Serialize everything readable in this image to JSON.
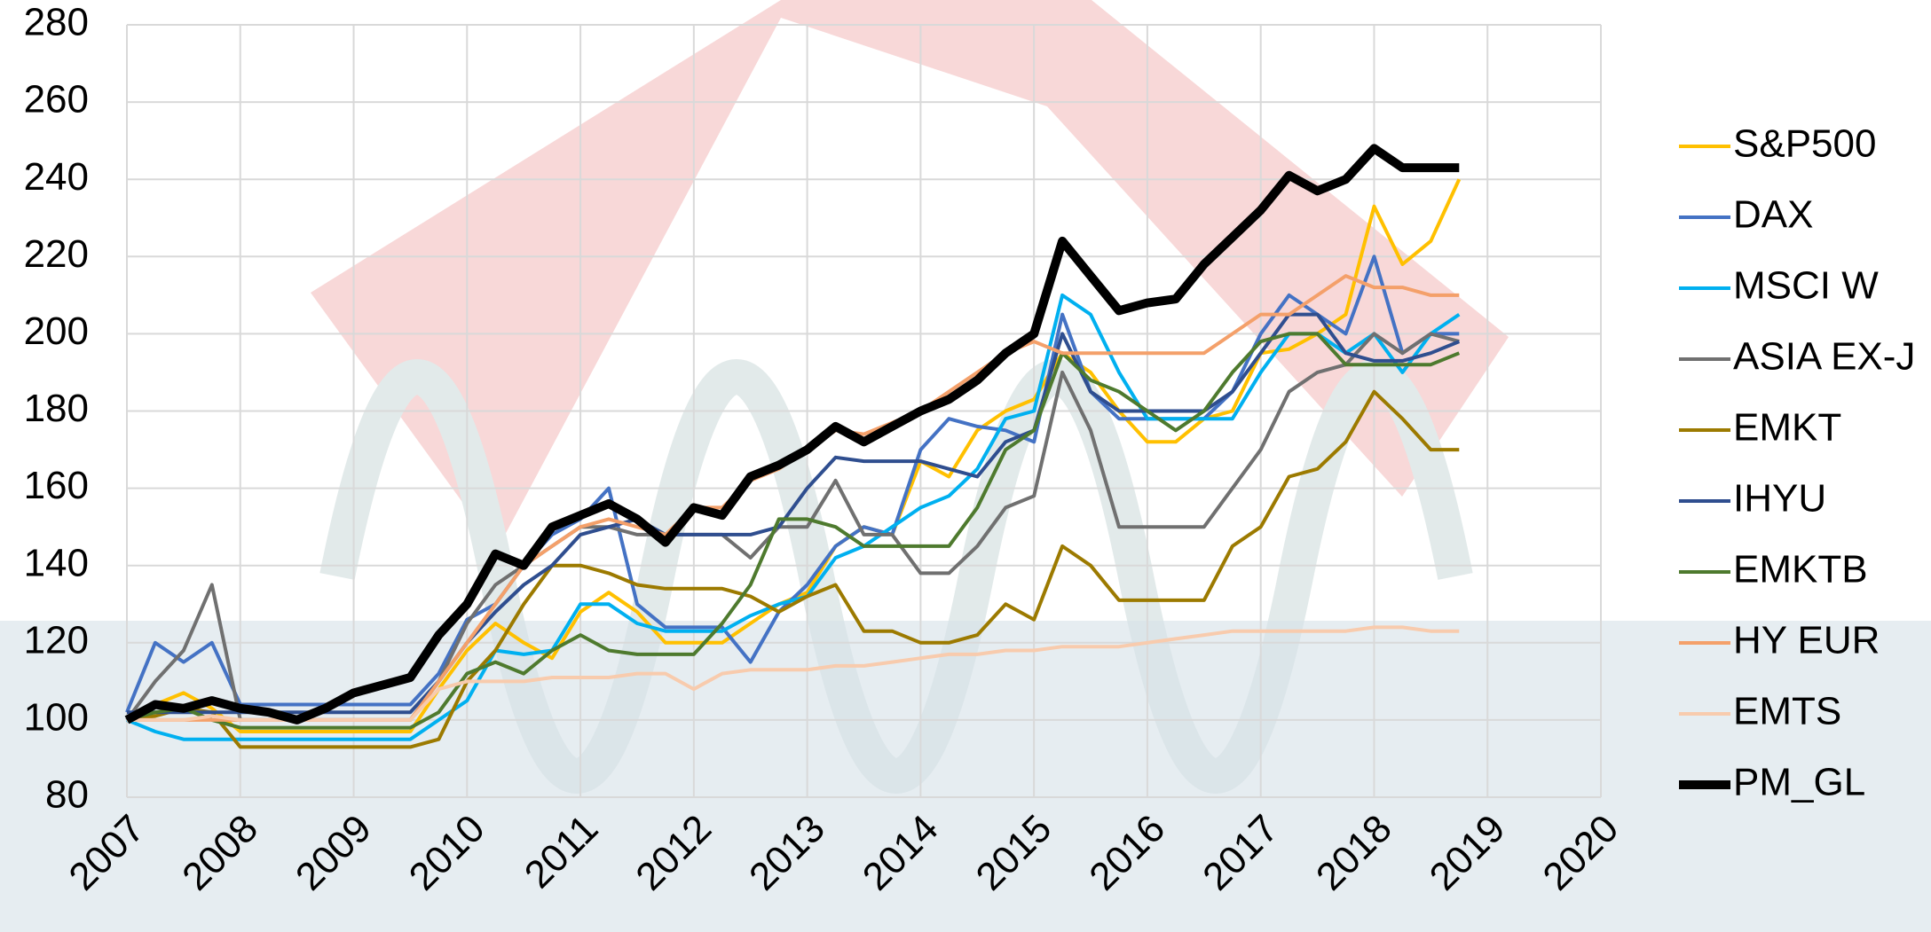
{
  "chart_data": {
    "type": "line",
    "x": [
      2007,
      2007.25,
      2007.5,
      2007.75,
      2008,
      2008.25,
      2008.5,
      2008.75,
      2009,
      2009.25,
      2009.5,
      2009.75,
      2010,
      2010.25,
      2010.5,
      2010.75,
      2011,
      2011.25,
      2011.5,
      2011.75,
      2012,
      2012.25,
      2012.5,
      2012.75,
      2013,
      2013.25,
      2013.5,
      2013.75,
      2014,
      2014.25,
      2014.5,
      2014.75,
      2015,
      2015.25,
      2015.5,
      2015.75,
      2016,
      2016.25,
      2016.5,
      2016.75,
      2017,
      2017.25,
      2017.5,
      2017.75,
      2018,
      2018.25,
      2018.5,
      2018.75
    ],
    "series": [
      {
        "name": "S&P500",
        "color": "#FFC000",
        "values": [
          100,
          104,
          107,
          103,
          97,
          97,
          97,
          97,
          97,
          97,
          97,
          108,
          118,
          125,
          120,
          116,
          128,
          133,
          128,
          120,
          120,
          120,
          125,
          130,
          133,
          145,
          150,
          148,
          167,
          163,
          175,
          180,
          183,
          195,
          190,
          180,
          172,
          172,
          178,
          180,
          195,
          196,
          200,
          205,
          233,
          218,
          224,
          240
        ]
      },
      {
        "name": "DAX",
        "color": "#4472C4",
        "values": [
          102,
          120,
          115,
          120,
          104,
          104,
          104,
          104,
          104,
          104,
          104,
          112,
          126,
          130,
          140,
          148,
          152,
          160,
          130,
          124,
          124,
          124,
          115,
          128,
          135,
          145,
          150,
          148,
          170,
          178,
          176,
          175,
          172,
          205,
          185,
          178,
          178,
          178,
          178,
          185,
          200,
          210,
          205,
          200,
          220,
          195,
          200,
          200
        ]
      },
      {
        "name": "MSCI W",
        "color": "#00B0F0",
        "values": [
          100,
          97,
          95,
          95,
          95,
          95,
          95,
          95,
          95,
          95,
          95,
          100,
          105,
          118,
          117,
          118,
          130,
          130,
          125,
          123,
          123,
          123,
          127,
          130,
          132,
          142,
          145,
          150,
          155,
          158,
          165,
          178,
          180,
          210,
          205,
          190,
          178,
          178,
          178,
          178,
          190,
          200,
          200,
          195,
          200,
          190,
          200,
          205
        ]
      },
      {
        "name": "ASIA EX-J",
        "color": "#707070",
        "values": [
          100,
          110,
          118,
          135,
          100,
          100,
          100,
          100,
          100,
          100,
          100,
          110,
          125,
          135,
          140,
          145,
          150,
          150,
          148,
          148,
          148,
          148,
          142,
          150,
          150,
          162,
          148,
          148,
          138,
          138,
          145,
          155,
          158,
          190,
          175,
          150,
          150,
          150,
          150,
          160,
          170,
          185,
          190,
          192,
          200,
          195,
          200,
          198
        ]
      },
      {
        "name": "EMKT",
        "color": "#9C7A00",
        "values": [
          100,
          101,
          103,
          102,
          93,
          93,
          93,
          93,
          93,
          93,
          93,
          95,
          110,
          118,
          130,
          140,
          140,
          138,
          135,
          134,
          134,
          134,
          132,
          128,
          132,
          135,
          123,
          123,
          120,
          120,
          122,
          130,
          126,
          145,
          140,
          131,
          131,
          131,
          131,
          145,
          150,
          163,
          165,
          172,
          185,
          178,
          170,
          170
        ]
      },
      {
        "name": "IHYU",
        "color": "#2F4E8F",
        "values": [
          102,
          102,
          102,
          102,
          102,
          102,
          102,
          102,
          102,
          102,
          102,
          110,
          120,
          128,
          135,
          140,
          148,
          150,
          152,
          148,
          148,
          148,
          148,
          150,
          160,
          168,
          167,
          167,
          167,
          165,
          163,
          172,
          175,
          200,
          185,
          180,
          180,
          180,
          180,
          185,
          195,
          205,
          205,
          195,
          193,
          193,
          195,
          198
        ]
      },
      {
        "name": "EMKTB",
        "color": "#4E7A2E",
        "values": [
          100,
          102,
          103,
          100,
          98,
          98,
          98,
          98,
          98,
          98,
          98,
          102,
          112,
          115,
          112,
          118,
          122,
          118,
          117,
          117,
          117,
          125,
          135,
          152,
          152,
          150,
          145,
          145,
          145,
          145,
          155,
          170,
          175,
          195,
          188,
          185,
          180,
          175,
          180,
          190,
          198,
          200,
          200,
          192,
          192,
          192,
          192,
          195
        ]
      },
      {
        "name": "HY EUR",
        "color": "#F4A06A",
        "values": [
          100,
          100,
          100,
          100,
          100,
          100,
          100,
          100,
          100,
          100,
          100,
          110,
          120,
          130,
          140,
          145,
          150,
          152,
          150,
          148,
          155,
          155,
          162,
          165,
          170,
          175,
          174,
          177,
          180,
          185,
          190,
          195,
          198,
          195,
          195,
          195,
          195,
          195,
          195,
          200,
          205,
          205,
          210,
          215,
          212,
          212,
          210,
          210
        ]
      },
      {
        "name": "EMTS",
        "color": "#F8CBAD",
        "values": [
          100,
          100,
          100,
          101,
          100,
          100,
          100,
          100,
          100,
          100,
          100,
          108,
          110,
          110,
          110,
          111,
          111,
          111,
          112,
          112,
          108,
          112,
          113,
          113,
          113,
          114,
          114,
          115,
          116,
          117,
          117,
          118,
          118,
          119,
          119,
          119,
          120,
          121,
          122,
          123,
          123,
          123,
          123,
          123,
          124,
          124,
          123,
          123
        ]
      },
      {
        "name": "PM_GL",
        "color": "#000000",
        "values": [
          100,
          104,
          103,
          105,
          103,
          102,
          100,
          103,
          107,
          109,
          111,
          122,
          130,
          143,
          140,
          150,
          153,
          156,
          152,
          146,
          155,
          153,
          163,
          166,
          170,
          176,
          172,
          176,
          180,
          183,
          188,
          195,
          200,
          224,
          215,
          206,
          208,
          209,
          218,
          225,
          232,
          241,
          237,
          240,
          248,
          243,
          243,
          243
        ]
      }
    ],
    "xlim": [
      2007,
      2020
    ],
    "xticks": [
      2007,
      2008,
      2009,
      2010,
      2011,
      2012,
      2013,
      2014,
      2015,
      2016,
      2017,
      2018,
      2019,
      2020
    ],
    "ylim": [
      80,
      280
    ],
    "yticks": [
      80,
      100,
      120,
      140,
      160,
      180,
      200,
      220,
      240,
      260,
      280
    ],
    "grid": true,
    "legend": "right"
  }
}
